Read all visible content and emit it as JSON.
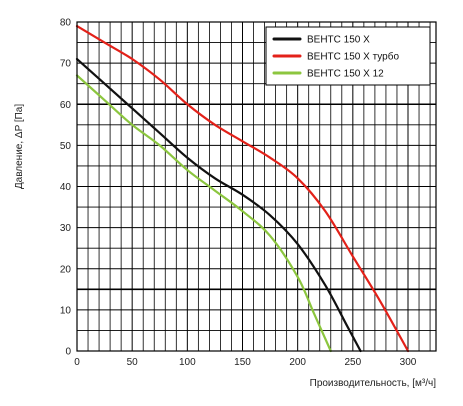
{
  "chart_data": {
    "type": "line",
    "title": "",
    "xlabel": "Производительность, [м³/ч]",
    "ylabel": "Давление, ΔP [Па]",
    "xlim": [
      0,
      300
    ],
    "ylim": [
      0,
      80
    ],
    "x_ticks": [
      "0",
      "50",
      "100",
      "150",
      "200",
      "250",
      "300"
    ],
    "y_ticks": [
      "0",
      "10",
      "20",
      "30",
      "40",
      "50",
      "60",
      "70",
      "80"
    ],
    "grid": true,
    "legend_position": "top-right",
    "series": [
      {
        "name": "ВЕНТС 150 Х",
        "color": "#111111",
        "points": [
          [
            0,
            71
          ],
          [
            25,
            65
          ],
          [
            50,
            59
          ],
          [
            75,
            53
          ],
          [
            100,
            47
          ],
          [
            125,
            42
          ],
          [
            150,
            38
          ],
          [
            175,
            33
          ],
          [
            200,
            26
          ],
          [
            225,
            16
          ],
          [
            245,
            6
          ],
          [
            257,
            0
          ]
        ]
      },
      {
        "name": "ВЕНТС 150 Х турбо",
        "color": "#e32119",
        "points": [
          [
            0,
            79
          ],
          [
            25,
            75
          ],
          [
            50,
            71
          ],
          [
            75,
            66
          ],
          [
            100,
            60
          ],
          [
            125,
            55
          ],
          [
            150,
            51
          ],
          [
            175,
            47
          ],
          [
            200,
            42
          ],
          [
            225,
            34
          ],
          [
            250,
            23
          ],
          [
            275,
            12
          ],
          [
            300,
            0
          ]
        ]
      },
      {
        "name": "ВЕНТС 150 Х 12",
        "color": "#8cc63f",
        "points": [
          [
            0,
            67
          ],
          [
            25,
            61
          ],
          [
            50,
            55
          ],
          [
            75,
            50
          ],
          [
            100,
            44
          ],
          [
            125,
            39
          ],
          [
            150,
            34
          ],
          [
            175,
            28
          ],
          [
            200,
            18
          ],
          [
            215,
            9
          ],
          [
            230,
            0
          ]
        ]
      }
    ]
  }
}
